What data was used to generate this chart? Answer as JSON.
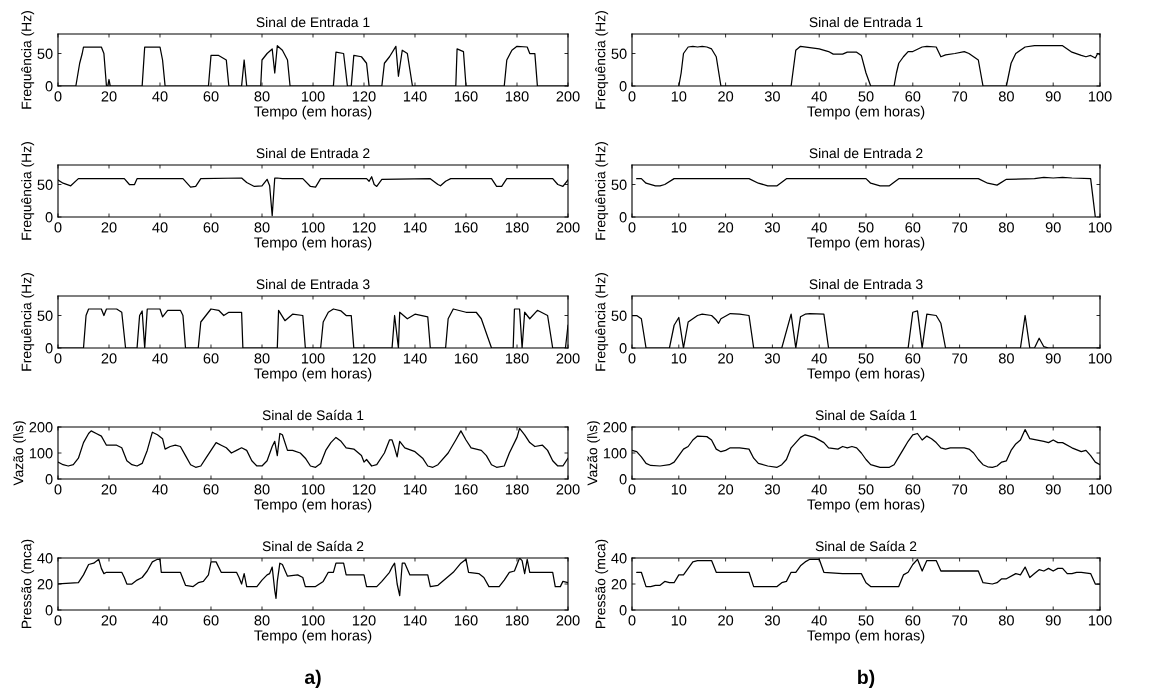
{
  "chart_data": [
    {
      "type": "line",
      "title": "Sinal de Entrada 1",
      "xlabel": "Tempo (em horas)",
      "ylabel": "Frequência (Hz)",
      "xlim": [
        0,
        200
      ],
      "ylim": [
        0,
        80
      ],
      "xticks": [
        0,
        20,
        40,
        60,
        80,
        100,
        120,
        140,
        160,
        180,
        200
      ],
      "yticks": [
        0,
        50
      ],
      "series": [
        {
          "color": "#000000",
          "x": [
            0,
            7,
            8.5,
            9.5,
            10,
            17,
            18,
            19,
            19.5,
            20,
            20.5,
            33,
            34,
            40,
            41,
            42,
            59,
            60,
            63,
            66,
            67,
            72,
            73,
            74,
            79.5,
            80,
            82,
            84,
            85,
            86,
            88,
            90,
            91,
            108,
            109,
            112,
            113.5,
            115,
            116,
            119,
            121,
            122,
            127,
            128,
            130,
            132.5,
            133.5,
            135,
            137,
            139,
            156,
            156.5,
            159,
            160,
            175,
            176,
            178,
            180,
            184,
            185,
            187,
            188,
            200
          ],
          "values": [
            0,
            0,
            35,
            50,
            60,
            60,
            50,
            0,
            0,
            10,
            0,
            0,
            60,
            60,
            40,
            0,
            0,
            47,
            47,
            40,
            0,
            0,
            40,
            0,
            0,
            40,
            50,
            57,
            20,
            62,
            55,
            40,
            0,
            0,
            52,
            50,
            0,
            0,
            47,
            45,
            35,
            0,
            0,
            35,
            45,
            61,
            15,
            55,
            50,
            0,
            0,
            57,
            53,
            0,
            0,
            40,
            55,
            61,
            60,
            50,
            50,
            0,
            0
          ]
        }
      ]
    },
    {
      "type": "line",
      "title": "Sinal de Entrada 2",
      "xlabel": "Tempo (em horas)",
      "ylabel": "Frequência (Hz)",
      "xlim": [
        0,
        200
      ],
      "ylim": [
        0,
        80
      ],
      "xticks": [
        0,
        20,
        40,
        60,
        80,
        100,
        120,
        140,
        160,
        180,
        200
      ],
      "yticks": [
        0,
        50
      ],
      "series": [
        {
          "color": "#000000",
          "x": [
            0,
            2,
            5,
            8,
            26,
            28,
            30,
            31,
            49,
            52,
            54,
            56,
            72,
            74,
            77,
            80,
            82,
            83,
            84,
            85,
            86,
            88,
            96,
            99,
            101,
            103,
            121,
            122,
            123,
            124,
            125,
            127,
            146,
            149,
            150,
            152,
            154,
            170,
            172,
            174,
            176,
            194,
            196,
            198,
            200
          ],
          "values": [
            57,
            52,
            48,
            59,
            59,
            50,
            50,
            59,
            59,
            46,
            47,
            59,
            60,
            53,
            47,
            48,
            58,
            48,
            2,
            60,
            60,
            59,
            59,
            47,
            46,
            59,
            59,
            55,
            62,
            50,
            47,
            58,
            59,
            50,
            48,
            55,
            59,
            59,
            47,
            47,
            59,
            59,
            50,
            47,
            57
          ]
        }
      ]
    },
    {
      "type": "line",
      "title": "Sinal de Entrada 3",
      "xlabel": "Tempo (em horas)",
      "ylabel": "Frequência (Hz)",
      "xlim": [
        0,
        200
      ],
      "ylim": [
        0,
        80
      ],
      "xticks": [
        0,
        20,
        40,
        60,
        80,
        100,
        120,
        140,
        160,
        180,
        200
      ],
      "yticks": [
        0,
        50
      ],
      "series": [
        {
          "color": "#000000",
          "x": [
            0,
            10,
            11,
            12,
            17,
            18,
            19,
            23,
            25,
            26.5,
            31,
            32,
            33,
            34,
            35,
            40,
            41,
            43,
            48,
            49,
            50,
            55,
            56,
            58,
            60,
            63,
            65,
            67,
            72,
            72.5,
            86,
            86.5,
            89,
            92,
            96,
            97,
            103,
            104,
            106,
            108,
            111,
            113,
            115,
            116,
            131,
            132,
            133.5,
            134,
            137,
            140,
            145,
            146,
            152,
            153,
            155,
            160,
            164,
            166,
            170,
            178.5,
            179,
            181,
            182,
            183,
            185,
            188,
            192,
            194,
            199,
            200
          ],
          "values": [
            0,
            0,
            50,
            60,
            60,
            50,
            60,
            60,
            55,
            0,
            0,
            50,
            57,
            0,
            60,
            60,
            48,
            58,
            58,
            50,
            0,
            0,
            40,
            50,
            60,
            58,
            50,
            55,
            55,
            0,
            0,
            58,
            42,
            52,
            50,
            0,
            0,
            40,
            55,
            60,
            57,
            50,
            50,
            0,
            0,
            50,
            0,
            55,
            45,
            52,
            48,
            0,
            0,
            45,
            60,
            55,
            55,
            45,
            0,
            0,
            60,
            60,
            0,
            55,
            45,
            58,
            50,
            0,
            0,
            35
          ]
        }
      ]
    },
    {
      "type": "line",
      "title": "Sinal de Saída 1",
      "xlabel": "Tempo (em horas)",
      "ylabel": "Vazão (l\\s)",
      "xlim": [
        0,
        200
      ],
      "ylim": [
        0,
        200
      ],
      "xticks": [
        0,
        20,
        40,
        60,
        80,
        100,
        120,
        140,
        160,
        180,
        200
      ],
      "yticks": [
        0,
        100,
        200
      ],
      "series": [
        {
          "color": "#000000",
          "x": [
            0,
            2,
            4,
            6,
            8,
            10,
            12,
            13,
            15,
            17,
            19,
            21,
            23,
            25,
            27,
            29,
            31,
            33,
            35,
            37,
            39,
            41,
            42,
            44,
            46,
            48,
            50,
            52,
            54,
            56,
            58,
            60,
            62,
            64,
            66,
            68,
            70,
            72,
            74,
            76,
            78,
            80,
            82,
            84,
            85,
            86,
            87,
            88,
            90,
            92,
            95,
            97,
            99,
            101,
            103,
            105,
            107,
            109,
            111,
            113,
            116,
            119,
            120,
            121,
            123,
            125,
            128,
            130,
            131,
            132,
            133,
            134,
            136,
            140,
            143,
            145,
            147,
            149,
            153,
            156,
            158,
            160,
            162,
            166,
            168,
            170,
            172,
            175,
            177,
            180,
            181,
            183,
            185,
            187,
            190,
            192,
            194,
            196,
            198,
            200
          ],
          "values": [
            65,
            55,
            50,
            55,
            80,
            140,
            175,
            185,
            175,
            165,
            130,
            130,
            130,
            120,
            70,
            55,
            50,
            60,
            110,
            180,
            170,
            155,
            115,
            125,
            130,
            125,
            90,
            55,
            45,
            50,
            80,
            110,
            140,
            130,
            120,
            100,
            110,
            120,
            110,
            70,
            50,
            50,
            70,
            125,
            145,
            90,
            175,
            170,
            110,
            110,
            100,
            80,
            50,
            45,
            60,
            110,
            140,
            160,
            145,
            120,
            115,
            90,
            65,
            75,
            50,
            55,
            100,
            150,
            150,
            120,
            85,
            145,
            120,
            105,
            80,
            50,
            45,
            55,
            100,
            150,
            185,
            150,
            120,
            110,
            90,
            55,
            45,
            50,
            100,
            160,
            195,
            170,
            140,
            125,
            130,
            110,
            70,
            50,
            50,
            80
          ]
        }
      ]
    },
    {
      "type": "line",
      "title": "Sinal de Saída 2",
      "xlabel": "Tempo (em horas)",
      "ylabel": "Pressão (mca)",
      "xlim": [
        0,
        200
      ],
      "ylim": [
        0,
        40
      ],
      "xticks": [
        0,
        20,
        40,
        60,
        80,
        100,
        120,
        140,
        160,
        180,
        200
      ],
      "yticks": [
        0,
        20,
        40
      ],
      "annotations": [
        "a)"
      ],
      "series": [
        {
          "color": "#000000",
          "x": [
            0,
            8,
            10,
            12,
            14,
            16,
            17,
            18,
            19,
            25,
            26,
            27,
            29,
            31,
            33,
            35,
            37,
            39,
            40,
            40.5,
            48,
            50,
            53,
            55,
            57,
            59,
            60,
            62,
            64,
            70,
            71,
            72,
            73,
            74,
            78,
            80,
            82,
            83,
            84,
            85,
            85.5,
            86,
            87,
            88,
            90,
            94,
            96,
            97,
            101,
            104,
            106,
            108,
            109,
            112,
            113,
            120,
            121,
            125,
            127,
            130,
            131,
            132,
            133,
            134,
            135,
            136,
            138,
            145,
            146,
            149,
            152,
            155,
            158,
            160,
            161,
            165,
            167,
            169,
            173,
            175,
            177,
            179,
            181,
            182,
            183,
            184,
            185,
            194,
            195,
            197,
            198,
            200
          ],
          "values": [
            20,
            21,
            27,
            35,
            36,
            39,
            32,
            28,
            29,
            29,
            25,
            20,
            20,
            23,
            25,
            30,
            37,
            39,
            39,
            29,
            29,
            19,
            18,
            21,
            22,
            27,
            37,
            37,
            29,
            29,
            25,
            20,
            28,
            18,
            18,
            23,
            27,
            28,
            33,
            15,
            9,
            22,
            36,
            35,
            26,
            27,
            25,
            18,
            18,
            22,
            29,
            29,
            36,
            36,
            27,
            27,
            18,
            18,
            22,
            29,
            33,
            36,
            20,
            11,
            36,
            36,
            27,
            27,
            18,
            19,
            24,
            29,
            36,
            39,
            29,
            28,
            25,
            18,
            18,
            23,
            29,
            30,
            40,
            38,
            28,
            39,
            29,
            29,
            18,
            18,
            22,
            21
          ]
        }
      ]
    },
    {
      "type": "line",
      "title": "Sinal de Entrada 1",
      "xlabel": "Tempo (em horas)",
      "ylabel": "Frequência (Hz)",
      "xlim": [
        0,
        100
      ],
      "ylim": [
        0,
        80
      ],
      "xticks": [
        0,
        10,
        20,
        30,
        40,
        50,
        60,
        70,
        80,
        90,
        100
      ],
      "yticks": [
        0,
        50
      ],
      "series": [
        {
          "color": "#000000",
          "x": [
            10,
            10.5,
            11,
            12,
            13,
            14,
            15,
            16,
            17,
            18,
            19,
            34,
            35,
            36,
            38,
            40,
            42,
            43,
            45,
            46,
            48,
            49,
            50,
            51,
            56,
            56.5,
            57,
            58,
            59,
            60,
            62,
            63,
            65,
            66,
            67,
            69,
            71,
            72,
            74,
            75,
            80,
            81,
            82,
            84,
            86,
            92,
            94,
            96,
            97,
            98,
            99,
            99.5,
            100
          ],
          "values": [
            0,
            20,
            50,
            60,
            61,
            60,
            61,
            60,
            57,
            45,
            0,
            0,
            55,
            61,
            59,
            57,
            53,
            49,
            49,
            52,
            52,
            47,
            20,
            0,
            0,
            20,
            35,
            45,
            53,
            53,
            60,
            61,
            60,
            45,
            48,
            50,
            53,
            50,
            40,
            0,
            0,
            35,
            50,
            60,
            62,
            62,
            52,
            47,
            45,
            47,
            43,
            50,
            48
          ]
        }
      ]
    },
    {
      "type": "line",
      "title": "Sinal de Entrada 2",
      "xlabel": "Tempo (em horas)",
      "ylabel": "Frequência (Hz)",
      "xlim": [
        0,
        100
      ],
      "ylim": [
        0,
        80
      ],
      "xticks": [
        0,
        10,
        20,
        30,
        40,
        50,
        60,
        70,
        80,
        90,
        100
      ],
      "yticks": [
        0,
        50
      ],
      "series": [
        {
          "color": "#000000",
          "x": [
            1,
            2,
            3,
            5,
            6,
            7,
            9,
            25,
            27,
            29,
            31,
            33,
            50,
            51,
            53,
            55,
            57,
            74,
            76,
            78,
            80,
            86,
            88,
            90,
            92,
            94,
            98,
            99
          ],
          "values": [
            59,
            59,
            52,
            48,
            48,
            50,
            59,
            59,
            52,
            48,
            48,
            59,
            59,
            52,
            48,
            48,
            59,
            59,
            52,
            49,
            58,
            59,
            61,
            60,
            61,
            60,
            59,
            0
          ]
        }
      ]
    },
    {
      "type": "line",
      "title": "Sinal de Entrada 3",
      "xlabel": "Tempo (em horas)",
      "ylabel": "Frequência (Hz)",
      "xlim": [
        0,
        100
      ],
      "ylim": [
        0,
        80
      ],
      "xticks": [
        0,
        10,
        20,
        30,
        40,
        50,
        60,
        70,
        80,
        90,
        100
      ],
      "yticks": [
        0,
        50
      ],
      "series": [
        {
          "color": "#000000",
          "x": [
            0,
            1,
            2,
            3,
            8,
            9,
            10,
            11,
            12,
            14,
            15,
            17,
            18,
            18.5,
            19,
            21,
            23,
            25,
            26,
            32,
            34,
            35,
            36,
            37,
            38,
            41,
            42,
            59,
            60,
            61,
            62,
            63,
            65,
            66,
            67,
            83,
            84,
            85,
            86,
            87,
            88,
            89,
            100
          ],
          "values": [
            50,
            50,
            45,
            0,
            0,
            35,
            47,
            0,
            40,
            50,
            52,
            50,
            43,
            38,
            45,
            53,
            52,
            50,
            0,
            0,
            52,
            0,
            48,
            52,
            53,
            52,
            0,
            0,
            55,
            57,
            0,
            52,
            50,
            38,
            0,
            0,
            50,
            0,
            0,
            15,
            2,
            0,
            0
          ]
        }
      ]
    },
    {
      "type": "line",
      "title": "Sinal de Saída 1",
      "xlabel": "Tempo (em horas)",
      "ylabel": "Vazão (l\\s)",
      "xlim": [
        0,
        100
      ],
      "ylim": [
        0,
        200
      ],
      "xticks": [
        0,
        10,
        20,
        30,
        40,
        50,
        60,
        70,
        80,
        90,
        100
      ],
      "yticks": [
        0,
        100,
        200
      ],
      "series": [
        {
          "color": "#000000",
          "x": [
            0,
            1,
            2,
            3,
            4,
            6,
            8,
            9,
            10,
            11,
            12,
            13,
            14,
            16,
            17,
            18,
            19,
            20,
            21,
            23,
            25,
            26,
            27,
            29,
            31,
            32,
            33,
            34,
            36,
            37,
            39,
            41,
            42,
            44,
            45,
            46,
            47,
            48,
            49,
            50,
            51,
            53,
            55,
            56,
            57,
            58,
            59,
            60,
            61,
            62,
            63,
            64,
            65,
            66,
            67,
            68,
            71,
            72,
            73,
            74,
            75,
            76,
            77,
            78,
            79,
            80,
            81,
            82,
            83,
            84,
            85,
            88,
            89,
            90,
            91,
            92,
            94,
            96,
            97,
            98,
            99,
            100
          ],
          "values": [
            110,
            105,
            85,
            60,
            52,
            50,
            55,
            65,
            90,
            115,
            125,
            150,
            165,
            163,
            150,
            115,
            105,
            110,
            120,
            120,
            115,
            80,
            60,
            50,
            45,
            55,
            75,
            120,
            160,
            170,
            160,
            140,
            120,
            115,
            125,
            120,
            125,
            120,
            100,
            75,
            55,
            45,
            45,
            55,
            85,
            115,
            145,
            170,
            175,
            150,
            165,
            155,
            140,
            120,
            115,
            120,
            120,
            115,
            100,
            75,
            55,
            47,
            45,
            50,
            65,
            70,
            110,
            135,
            150,
            190,
            155,
            145,
            140,
            150,
            140,
            140,
            120,
            105,
            110,
            90,
            65,
            55
          ]
        }
      ]
    },
    {
      "type": "line",
      "title": "Sinal de Saída 2",
      "xlabel": "Tempo (em horas)",
      "ylabel": "Pressão (mca)",
      "xlim": [
        0,
        100
      ],
      "ylim": [
        0,
        40
      ],
      "xticks": [
        0,
        10,
        20,
        30,
        40,
        50,
        60,
        70,
        80,
        90,
        100
      ],
      "yticks": [
        0,
        20,
        40
      ],
      "annotations": [
        "b)"
      ],
      "series": [
        {
          "color": "#000000",
          "x": [
            1,
            2,
            3,
            4,
            5,
            6,
            7,
            8,
            9,
            10,
            11,
            12,
            13,
            14,
            17,
            18,
            20,
            22,
            25,
            26,
            31,
            32,
            33,
            34,
            35,
            36,
            37,
            38,
            40,
            41,
            45,
            49,
            50,
            51,
            57,
            58,
            59,
            60,
            61,
            62,
            63,
            65,
            66,
            74,
            75,
            77,
            78,
            79,
            80,
            82,
            83,
            84,
            85,
            86,
            87,
            88,
            89,
            90,
            91,
            92,
            93,
            94,
            95,
            96,
            98,
            99,
            100
          ],
          "values": [
            29,
            29,
            18,
            18,
            19,
            19,
            22,
            21,
            21,
            27,
            27,
            32,
            37,
            38,
            38,
            29,
            29,
            29,
            29,
            18,
            18,
            21,
            22,
            29,
            29,
            34,
            37,
            39,
            39,
            29,
            28,
            28,
            21,
            18,
            18,
            27,
            29,
            35,
            39,
            30,
            38,
            38,
            30,
            30,
            21,
            20,
            21,
            24,
            24,
            28,
            27,
            33,
            25,
            28,
            31,
            30,
            32,
            30,
            32,
            32,
            28,
            28,
            29,
            29,
            28,
            20,
            20
          ]
        }
      ]
    }
  ]
}
